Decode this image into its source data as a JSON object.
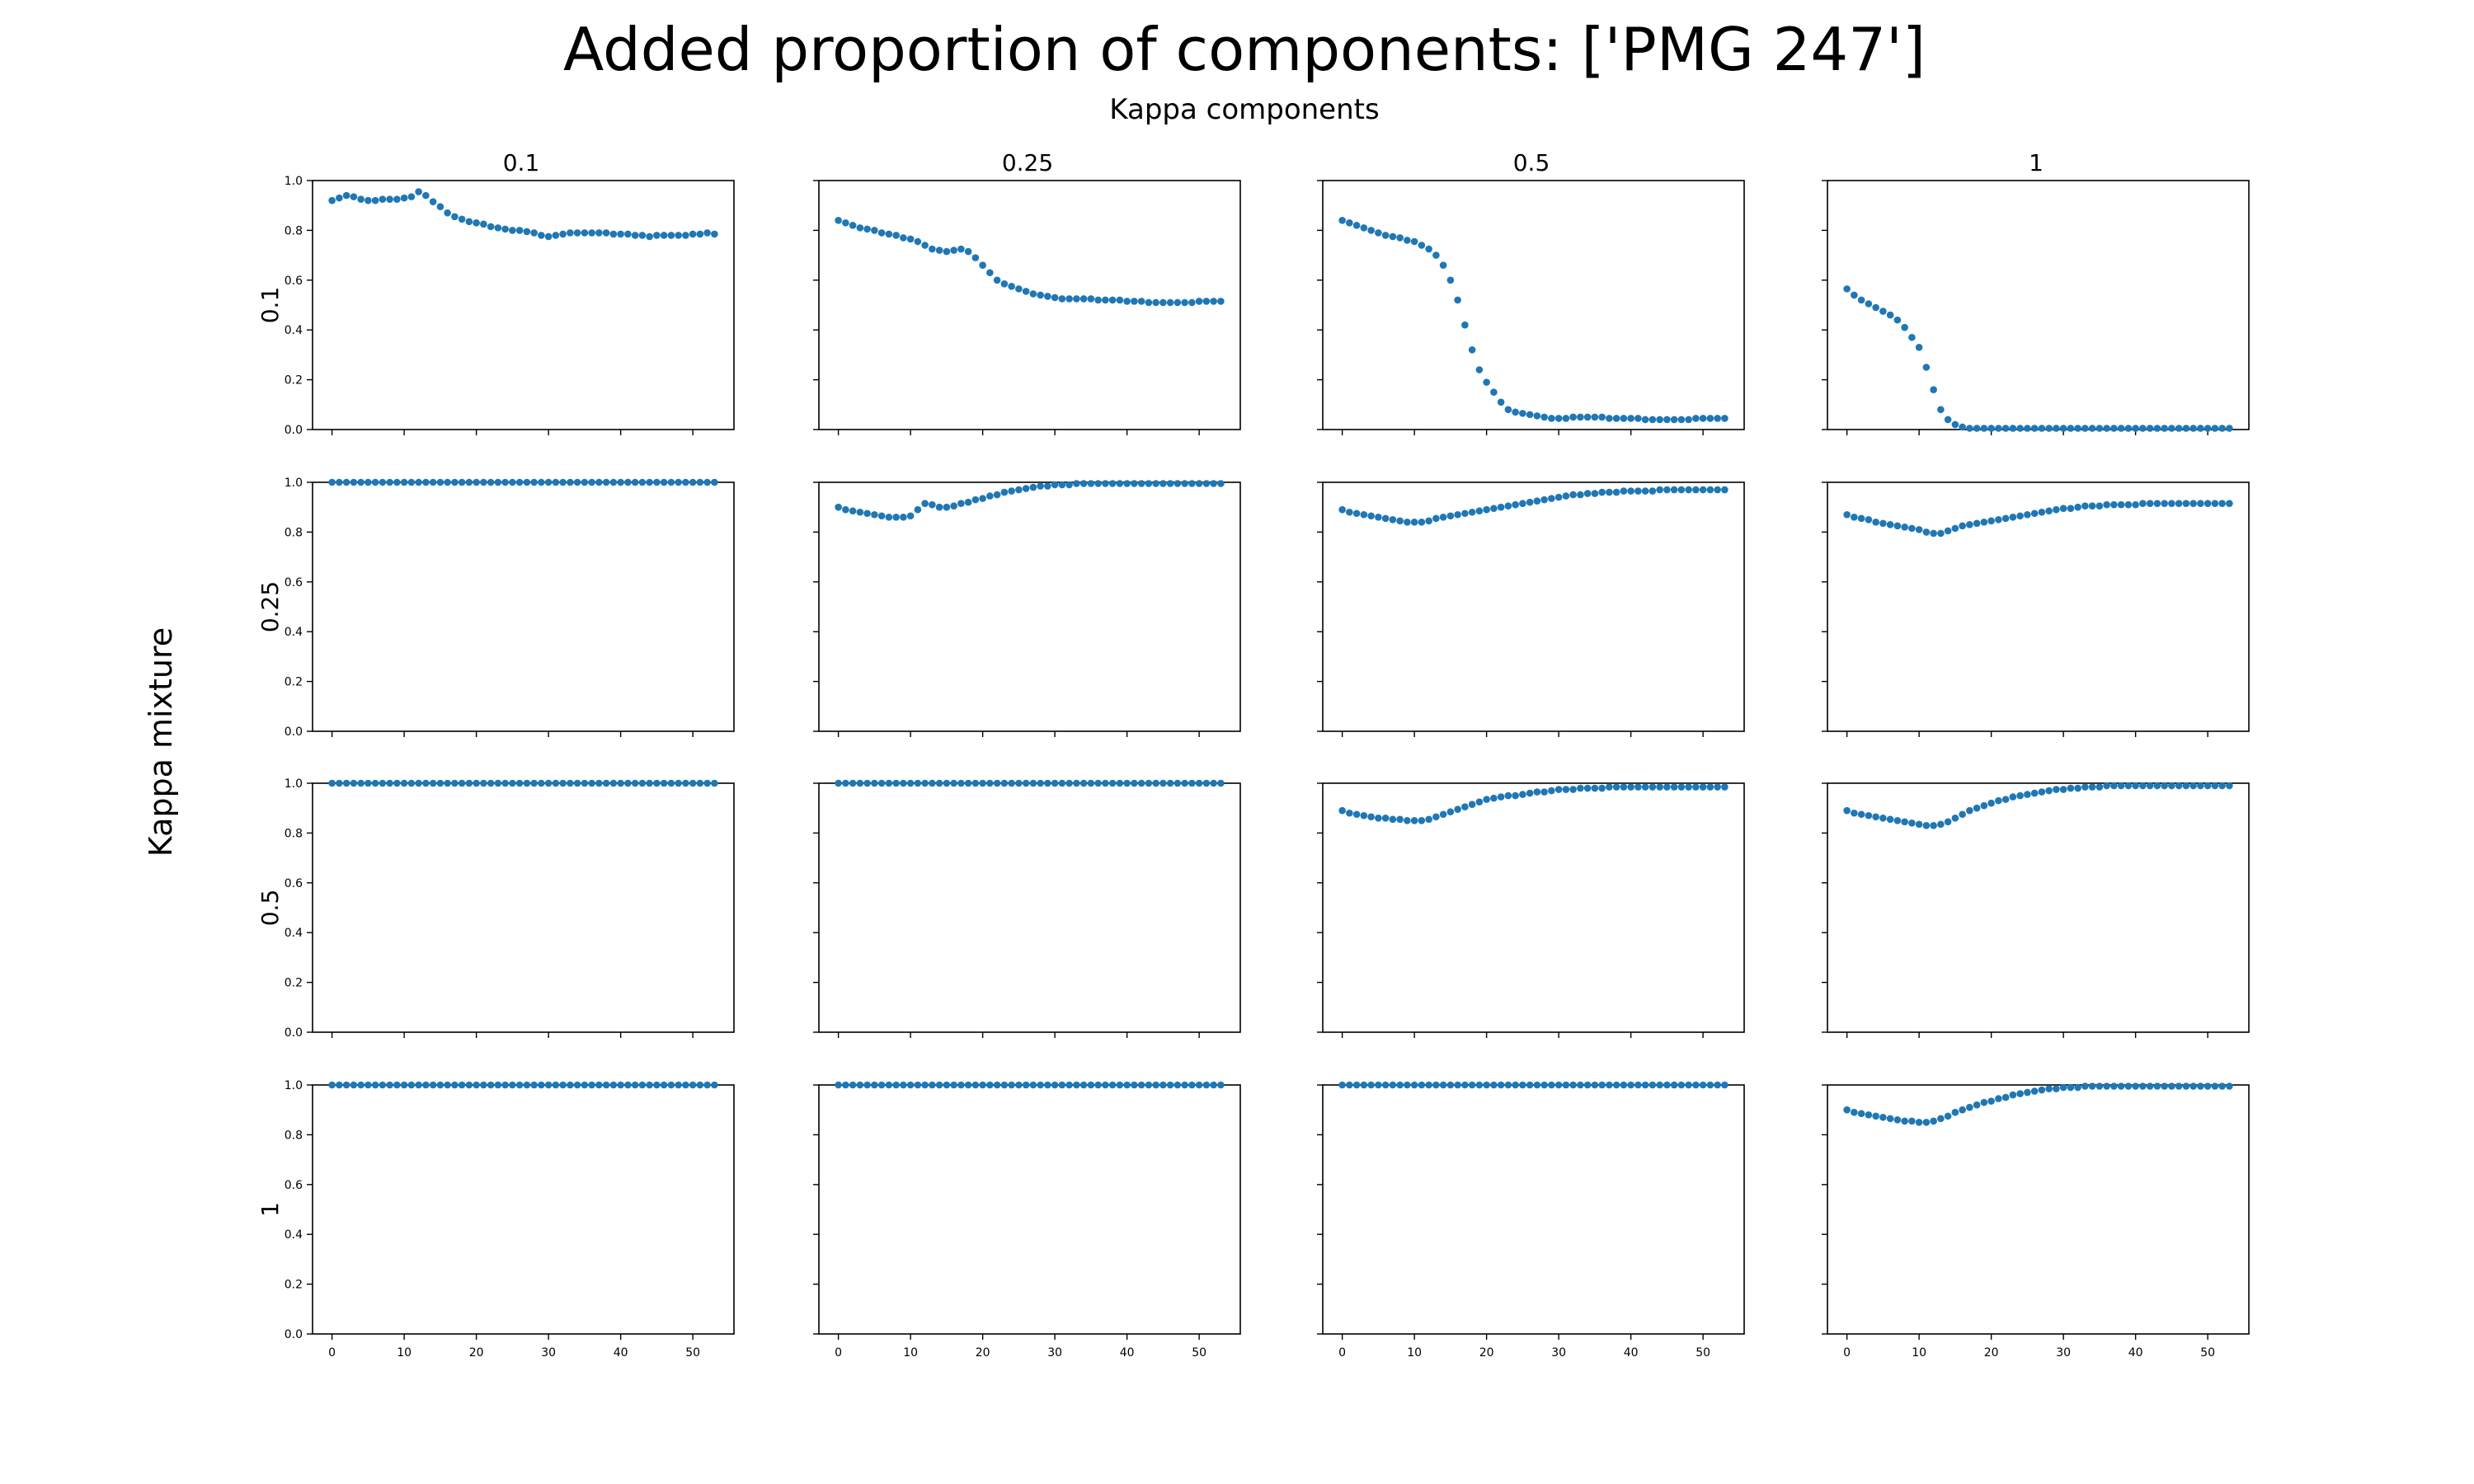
{
  "title": "Added proportion of components: ['PMG 247']",
  "subtitle": "Kappa components",
  "row_label": "Kappa mixture",
  "column_headers": [
    "0.1",
    "0.25",
    "0.5",
    "1"
  ],
  "row_headers": [
    "0.1",
    "0.25",
    "0.5",
    "1"
  ],
  "marker_color": "#1f77b4",
  "chart_data": {
    "type": "scatter",
    "grid": false,
    "layout": "4x4 small multiples",
    "xlim": [
      -2.7,
      55.7
    ],
    "ylim": [
      0,
      1
    ],
    "xticks": [
      0,
      10,
      20,
      30,
      40,
      50
    ],
    "yticks": [
      0.0,
      0.2,
      0.4,
      0.6,
      0.8,
      1.0
    ],
    "ytick_labels": [
      "0.0",
      "0.2",
      "0.4",
      "0.6",
      "0.8",
      "1.0"
    ],
    "x": [
      0,
      1,
      2,
      3,
      4,
      5,
      6,
      7,
      8,
      9,
      10,
      11,
      12,
      13,
      14,
      15,
      16,
      17,
      18,
      19,
      20,
      21,
      22,
      23,
      24,
      25,
      26,
      27,
      28,
      29,
      30,
      31,
      32,
      33,
      34,
      35,
      36,
      37,
      38,
      39,
      40,
      41,
      42,
      43,
      44,
      45,
      46,
      47,
      48,
      49,
      50,
      51,
      52,
      53
    ],
    "panels": [
      {
        "row": "0.1",
        "col": "0.1",
        "y": [
          0.92,
          0.93,
          0.94,
          0.935,
          0.925,
          0.92,
          0.92,
          0.925,
          0.925,
          0.925,
          0.93,
          0.935,
          0.955,
          0.94,
          0.915,
          0.895,
          0.87,
          0.855,
          0.845,
          0.835,
          0.83,
          0.825,
          0.815,
          0.81,
          0.805,
          0.8,
          0.8,
          0.795,
          0.79,
          0.78,
          0.775,
          0.78,
          0.785,
          0.79,
          0.79,
          0.79,
          0.79,
          0.79,
          0.79,
          0.785,
          0.785,
          0.785,
          0.78,
          0.78,
          0.775,
          0.78,
          0.78,
          0.78,
          0.78,
          0.78,
          0.785,
          0.785,
          0.79,
          0.785
        ]
      },
      {
        "row": "0.1",
        "col": "0.25",
        "y": [
          0.84,
          0.83,
          0.82,
          0.81,
          0.805,
          0.8,
          0.79,
          0.785,
          0.78,
          0.77,
          0.765,
          0.755,
          0.74,
          0.725,
          0.72,
          0.715,
          0.72,
          0.725,
          0.715,
          0.69,
          0.66,
          0.63,
          0.6,
          0.585,
          0.575,
          0.565,
          0.555,
          0.545,
          0.54,
          0.535,
          0.53,
          0.525,
          0.525,
          0.525,
          0.525,
          0.525,
          0.52,
          0.52,
          0.52,
          0.52,
          0.515,
          0.515,
          0.515,
          0.51,
          0.51,
          0.51,
          0.51,
          0.51,
          0.51,
          0.51,
          0.515,
          0.515,
          0.515,
          0.515
        ]
      },
      {
        "row": "0.1",
        "col": "0.5",
        "y": [
          0.84,
          0.83,
          0.82,
          0.81,
          0.8,
          0.79,
          0.78,
          0.775,
          0.77,
          0.76,
          0.755,
          0.74,
          0.725,
          0.7,
          0.66,
          0.6,
          0.52,
          0.42,
          0.32,
          0.24,
          0.19,
          0.15,
          0.11,
          0.08,
          0.07,
          0.065,
          0.06,
          0.055,
          0.05,
          0.045,
          0.045,
          0.045,
          0.05,
          0.05,
          0.05,
          0.05,
          0.05,
          0.045,
          0.045,
          0.045,
          0.045,
          0.045,
          0.04,
          0.04,
          0.04,
          0.04,
          0.04,
          0.04,
          0.04,
          0.045,
          0.045,
          0.045,
          0.045,
          0.045
        ]
      },
      {
        "row": "0.1",
        "col": "1",
        "y": [
          0.565,
          0.54,
          0.52,
          0.505,
          0.49,
          0.475,
          0.46,
          0.44,
          0.41,
          0.37,
          0.33,
          0.25,
          0.16,
          0.08,
          0.04,
          0.02,
          0.01,
          0.005,
          0.005,
          0.005,
          0.005,
          0.005,
          0.005,
          0.005,
          0.005,
          0.005,
          0.005,
          0.005,
          0.005,
          0.005,
          0.005,
          0.005,
          0.005,
          0.005,
          0.005,
          0.005,
          0.005,
          0.005,
          0.005,
          0.005,
          0.005,
          0.005,
          0.005,
          0.005,
          0.005,
          0.005,
          0.005,
          0.005,
          0.005,
          0.005,
          0.005,
          0.005,
          0.005,
          0.005
        ]
      },
      {
        "row": "0.25",
        "col": "0.1",
        "y": [
          1,
          1,
          1,
          1,
          1,
          1,
          1,
          1,
          1,
          1,
          1,
          1,
          1,
          1,
          1,
          1,
          1,
          1,
          1,
          1,
          1,
          1,
          1,
          1,
          1,
          1,
          1,
          1,
          1,
          1,
          1,
          1,
          1,
          1,
          1,
          1,
          1,
          1,
          1,
          1,
          1,
          1,
          1,
          1,
          1,
          1,
          1,
          1,
          1,
          1,
          1,
          1,
          1,
          1
        ]
      },
      {
        "row": "0.25",
        "col": "0.25",
        "y": [
          0.9,
          0.89,
          0.885,
          0.88,
          0.875,
          0.87,
          0.865,
          0.86,
          0.86,
          0.86,
          0.865,
          0.89,
          0.915,
          0.91,
          0.9,
          0.9,
          0.905,
          0.915,
          0.92,
          0.93,
          0.935,
          0.945,
          0.95,
          0.96,
          0.965,
          0.97,
          0.975,
          0.98,
          0.985,
          0.985,
          0.99,
          0.99,
          0.99,
          0.995,
          0.995,
          0.995,
          0.995,
          0.995,
          0.995,
          0.995,
          0.995,
          0.995,
          0.995,
          0.995,
          0.995,
          0.995,
          0.995,
          0.995,
          0.995,
          0.995,
          0.995,
          0.995,
          0.995,
          0.995
        ]
      },
      {
        "row": "0.25",
        "col": "0.5",
        "y": [
          0.89,
          0.88,
          0.875,
          0.87,
          0.865,
          0.86,
          0.855,
          0.85,
          0.845,
          0.84,
          0.84,
          0.84,
          0.845,
          0.855,
          0.86,
          0.865,
          0.87,
          0.875,
          0.88,
          0.885,
          0.89,
          0.895,
          0.9,
          0.905,
          0.91,
          0.915,
          0.92,
          0.925,
          0.93,
          0.935,
          0.94,
          0.945,
          0.95,
          0.95,
          0.955,
          0.955,
          0.96,
          0.96,
          0.96,
          0.965,
          0.965,
          0.965,
          0.965,
          0.965,
          0.97,
          0.97,
          0.97,
          0.97,
          0.97,
          0.97,
          0.97,
          0.97,
          0.97,
          0.97
        ]
      },
      {
        "row": "0.25",
        "col": "1",
        "y": [
          0.87,
          0.86,
          0.855,
          0.85,
          0.84,
          0.835,
          0.83,
          0.825,
          0.82,
          0.815,
          0.81,
          0.8,
          0.795,
          0.795,
          0.805,
          0.815,
          0.825,
          0.83,
          0.835,
          0.84,
          0.845,
          0.85,
          0.855,
          0.86,
          0.865,
          0.87,
          0.875,
          0.88,
          0.885,
          0.89,
          0.895,
          0.895,
          0.9,
          0.905,
          0.905,
          0.905,
          0.91,
          0.91,
          0.91,
          0.91,
          0.91,
          0.915,
          0.915,
          0.915,
          0.915,
          0.915,
          0.915,
          0.915,
          0.915,
          0.915,
          0.915,
          0.915,
          0.915,
          0.915
        ]
      },
      {
        "row": "0.5",
        "col": "0.1",
        "y": [
          1,
          1,
          1,
          1,
          1,
          1,
          1,
          1,
          1,
          1,
          1,
          1,
          1,
          1,
          1,
          1,
          1,
          1,
          1,
          1,
          1,
          1,
          1,
          1,
          1,
          1,
          1,
          1,
          1,
          1,
          1,
          1,
          1,
          1,
          1,
          1,
          1,
          1,
          1,
          1,
          1,
          1,
          1,
          1,
          1,
          1,
          1,
          1,
          1,
          1,
          1,
          1,
          1,
          1
        ]
      },
      {
        "row": "0.5",
        "col": "0.25",
        "y": [
          1,
          1,
          1,
          1,
          1,
          1,
          1,
          1,
          1,
          1,
          1,
          1,
          1,
          1,
          1,
          1,
          1,
          1,
          1,
          1,
          1,
          1,
          1,
          1,
          1,
          1,
          1,
          1,
          1,
          1,
          1,
          1,
          1,
          1,
          1,
          1,
          1,
          1,
          1,
          1,
          1,
          1,
          1,
          1,
          1,
          1,
          1,
          1,
          1,
          1,
          1,
          1,
          1,
          1
        ]
      },
      {
        "row": "0.5",
        "col": "0.5",
        "y": [
          0.89,
          0.88,
          0.875,
          0.87,
          0.865,
          0.86,
          0.86,
          0.855,
          0.855,
          0.85,
          0.85,
          0.85,
          0.855,
          0.865,
          0.875,
          0.885,
          0.895,
          0.905,
          0.915,
          0.925,
          0.935,
          0.94,
          0.945,
          0.95,
          0.95,
          0.955,
          0.96,
          0.965,
          0.965,
          0.97,
          0.975,
          0.975,
          0.975,
          0.98,
          0.98,
          0.98,
          0.98,
          0.985,
          0.985,
          0.985,
          0.985,
          0.985,
          0.985,
          0.985,
          0.985,
          0.985,
          0.985,
          0.985,
          0.985,
          0.985,
          0.985,
          0.985,
          0.985,
          0.985
        ]
      },
      {
        "row": "0.5",
        "col": "1",
        "y": [
          0.89,
          0.88,
          0.875,
          0.87,
          0.865,
          0.86,
          0.855,
          0.85,
          0.845,
          0.84,
          0.835,
          0.83,
          0.83,
          0.835,
          0.845,
          0.86,
          0.875,
          0.89,
          0.9,
          0.91,
          0.92,
          0.93,
          0.935,
          0.945,
          0.95,
          0.955,
          0.96,
          0.965,
          0.97,
          0.975,
          0.975,
          0.98,
          0.98,
          0.985,
          0.985,
          0.985,
          0.99,
          0.99,
          0.99,
          0.99,
          0.99,
          0.99,
          0.99,
          0.99,
          0.99,
          0.99,
          0.99,
          0.99,
          0.99,
          0.99,
          0.99,
          0.99,
          0.99,
          0.99
        ]
      },
      {
        "row": "1",
        "col": "0.1",
        "y": [
          1,
          1,
          1,
          1,
          1,
          1,
          1,
          1,
          1,
          1,
          1,
          1,
          1,
          1,
          1,
          1,
          1,
          1,
          1,
          1,
          1,
          1,
          1,
          1,
          1,
          1,
          1,
          1,
          1,
          1,
          1,
          1,
          1,
          1,
          1,
          1,
          1,
          1,
          1,
          1,
          1,
          1,
          1,
          1,
          1,
          1,
          1,
          1,
          1,
          1,
          1,
          1,
          1,
          1
        ]
      },
      {
        "row": "1",
        "col": "0.25",
        "y": [
          1,
          1,
          1,
          1,
          1,
          1,
          1,
          1,
          1,
          1,
          1,
          1,
          1,
          1,
          1,
          1,
          1,
          1,
          1,
          1,
          1,
          1,
          1,
          1,
          1,
          1,
          1,
          1,
          1,
          1,
          1,
          1,
          1,
          1,
          1,
          1,
          1,
          1,
          1,
          1,
          1,
          1,
          1,
          1,
          1,
          1,
          1,
          1,
          1,
          1,
          1,
          1,
          1,
          1
        ]
      },
      {
        "row": "1",
        "col": "0.5",
        "y": [
          1,
          1,
          1,
          1,
          1,
          1,
          1,
          1,
          1,
          1,
          1,
          1,
          1,
          1,
          1,
          1,
          1,
          1,
          1,
          1,
          1,
          1,
          1,
          1,
          1,
          1,
          1,
          1,
          1,
          1,
          1,
          1,
          1,
          1,
          1,
          1,
          1,
          1,
          1,
          1,
          1,
          1,
          1,
          1,
          1,
          1,
          1,
          1,
          1,
          1,
          1,
          1,
          1,
          1
        ]
      },
      {
        "row": "1",
        "col": "1",
        "y": [
          0.9,
          0.89,
          0.885,
          0.88,
          0.875,
          0.87,
          0.865,
          0.86,
          0.855,
          0.855,
          0.85,
          0.85,
          0.855,
          0.865,
          0.875,
          0.89,
          0.9,
          0.91,
          0.92,
          0.93,
          0.935,
          0.945,
          0.95,
          0.96,
          0.965,
          0.97,
          0.975,
          0.98,
          0.985,
          0.985,
          0.99,
          0.99,
          0.99,
          0.995,
          0.995,
          0.995,
          0.995,
          0.995,
          0.995,
          0.995,
          0.995,
          0.995,
          0.995,
          0.995,
          0.995,
          0.995,
          0.995,
          0.995,
          0.995,
          0.995,
          0.995,
          0.995,
          0.995,
          0.995
        ]
      }
    ]
  }
}
